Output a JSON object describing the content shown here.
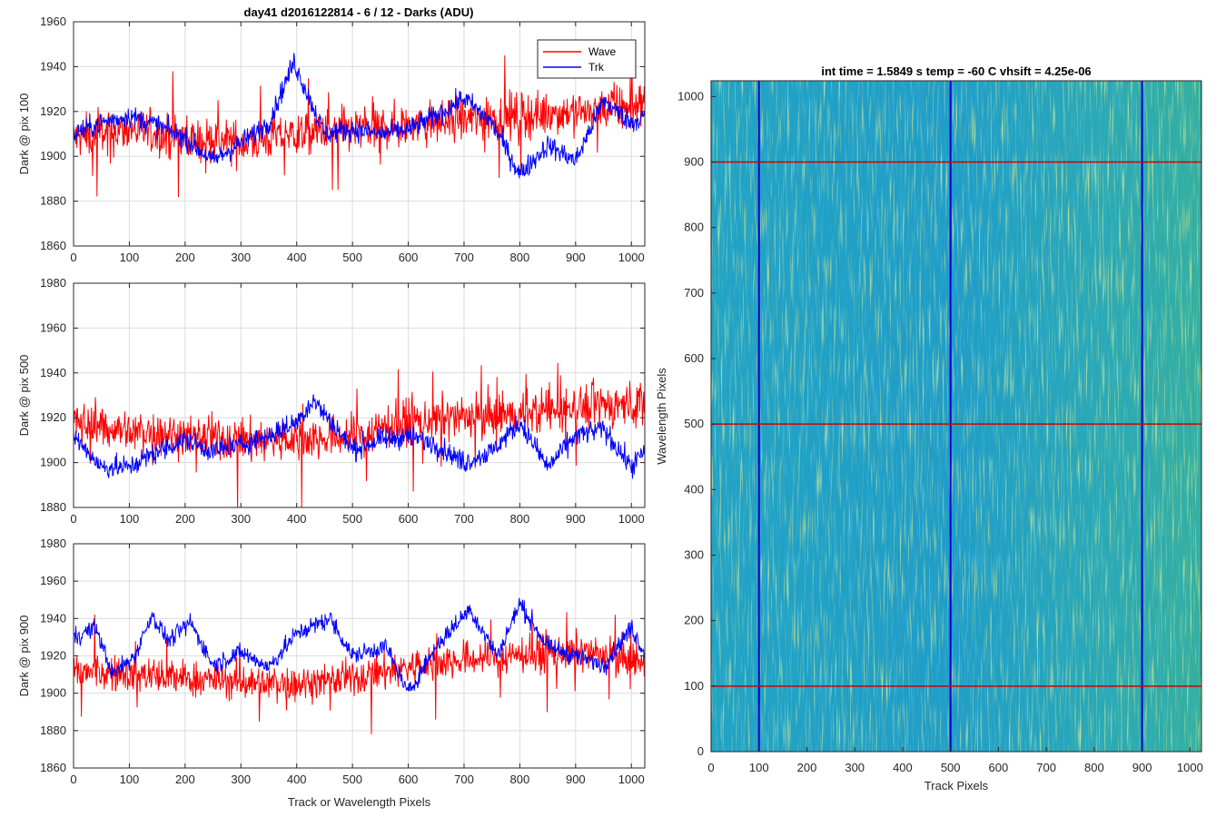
{
  "figure": {
    "title": "day41 d2016122814 - 6 / 12 - Darks (ADU)"
  },
  "chart_data": [
    {
      "type": "line",
      "title": "day41 d2016122814 - 6 / 12 - Darks (ADU)",
      "xlabel": "",
      "ylabel": "Dark @ pix 100",
      "xlim": [
        0,
        1024
      ],
      "ylim": [
        1860,
        1960
      ],
      "xticks": [
        0,
        100,
        200,
        300,
        400,
        500,
        600,
        700,
        800,
        900,
        1000
      ],
      "yticks": [
        1860,
        1880,
        1900,
        1920,
        1940,
        1960
      ],
      "grid": true,
      "legend": {
        "position": "top-right",
        "entries": [
          "Wave",
          "Trk"
        ]
      },
      "series": [
        {
          "name": "Wave",
          "color": "#ff0000",
          "x": [
            0,
            100,
            200,
            300,
            400,
            500,
            600,
            700,
            800,
            900,
            1000,
            1023
          ],
          "values": [
            1908,
            1912,
            1908,
            1906,
            1910,
            1912,
            1914,
            1916,
            1918,
            1920,
            1922,
            1924
          ]
        },
        {
          "name": "Trk",
          "color": "#0000ff",
          "x": [
            0,
            50,
            100,
            150,
            200,
            250,
            300,
            350,
            395,
            450,
            500,
            550,
            600,
            650,
            700,
            750,
            800,
            850,
            900,
            950,
            1000,
            1023
          ],
          "values": [
            1910,
            1915,
            1918,
            1914,
            1908,
            1898,
            1906,
            1915,
            1942,
            1910,
            1912,
            1910,
            1912,
            1918,
            1926,
            1915,
            1892,
            1905,
            1898,
            1925,
            1915,
            1918
          ]
        }
      ]
    },
    {
      "type": "line",
      "title": "",
      "xlabel": "",
      "ylabel": "Dark @ pix 500",
      "xlim": [
        0,
        1024
      ],
      "ylim": [
        1880,
        1980
      ],
      "xticks": [
        0,
        100,
        200,
        300,
        400,
        500,
        600,
        700,
        800,
        900,
        1000
      ],
      "yticks": [
        1880,
        1900,
        1920,
        1940,
        1960,
        1980
      ],
      "grid": true,
      "series": [
        {
          "name": "Wave",
          "color": "#ff0000",
          "x": [
            0,
            100,
            200,
            300,
            400,
            500,
            600,
            700,
            800,
            900,
            1000,
            1023
          ],
          "values": [
            1918,
            1914,
            1912,
            1910,
            1910,
            1912,
            1918,
            1920,
            1922,
            1925,
            1926,
            1926
          ]
        },
        {
          "name": "Trk",
          "color": "#0000ff",
          "x": [
            0,
            50,
            100,
            150,
            200,
            250,
            300,
            350,
            400,
            430,
            500,
            550,
            600,
            650,
            700,
            750,
            800,
            850,
            900,
            950,
            1000,
            1023
          ],
          "values": [
            1912,
            1898,
            1898,
            1905,
            1910,
            1905,
            1908,
            1912,
            1918,
            1928,
            1906,
            1910,
            1912,
            1908,
            1900,
            1905,
            1918,
            1898,
            1912,
            1915,
            1898,
            1905
          ]
        }
      ]
    },
    {
      "type": "line",
      "title": "",
      "xlabel": "Track or Wavelength Pixels",
      "ylabel": "Dark @ pix 900",
      "xlim": [
        0,
        1024
      ],
      "ylim": [
        1860,
        1980
      ],
      "xticks": [
        0,
        100,
        200,
        300,
        400,
        500,
        600,
        700,
        800,
        900,
        1000
      ],
      "yticks": [
        1860,
        1880,
        1900,
        1920,
        1940,
        1960,
        1980
      ],
      "grid": true,
      "series": [
        {
          "name": "Wave",
          "color": "#ff0000",
          "x": [
            0,
            100,
            200,
            300,
            400,
            500,
            600,
            700,
            800,
            900,
            1000,
            1023
          ],
          "values": [
            1912,
            1910,
            1908,
            1906,
            1905,
            1908,
            1914,
            1918,
            1920,
            1922,
            1918,
            1915
          ]
        },
        {
          "name": "Trk",
          "color": "#0000ff",
          "x": [
            0,
            40,
            70,
            110,
            140,
            170,
            210,
            250,
            300,
            350,
            400,
            460,
            500,
            560,
            600,
            650,
            710,
            760,
            800,
            850,
            900,
            950,
            1000,
            1023
          ],
          "values": [
            1930,
            1935,
            1910,
            1920,
            1942,
            1928,
            1938,
            1915,
            1922,
            1914,
            1932,
            1940,
            1920,
            1925,
            1900,
            1925,
            1945,
            1920,
            1948,
            1925,
            1920,
            1915,
            1935,
            1922
          ]
        }
      ]
    },
    {
      "type": "heatmap",
      "title": "int time = 1.5849 s    temp = -60 C    vhsift = 4.25e-06",
      "xlabel": "Track Pixels",
      "ylabel": "Wavelength Pixels",
      "xlim": [
        0,
        1024
      ],
      "ylim": [
        0,
        1024
      ],
      "xticks": [
        0,
        100,
        200,
        300,
        400,
        500,
        600,
        700,
        800,
        900,
        1000
      ],
      "yticks": [
        0,
        100,
        200,
        300,
        400,
        500,
        600,
        700,
        800,
        900,
        1000
      ],
      "colormap": "parula",
      "vertical_markers": {
        "color": "#0000cc",
        "x": [
          100,
          500,
          900
        ]
      },
      "horizontal_markers": {
        "color": "#d00000",
        "y": [
          100,
          500,
          900
        ]
      }
    }
  ]
}
